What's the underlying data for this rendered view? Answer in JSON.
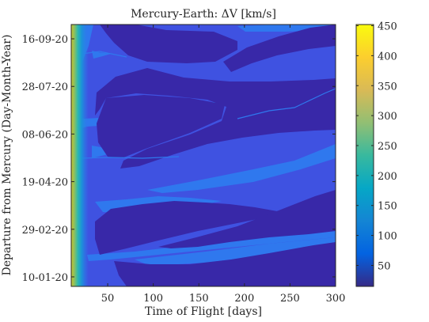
{
  "chart_data": {
    "type": "heatmap",
    "title": "Mercury-Earth: ΔV [km/s]",
    "xlabel": "Time of Flight [days]",
    "ylabel": "Departure from Mercury (Day-Month-Year)",
    "x": {
      "ticks": [
        50,
        100,
        150,
        200,
        250,
        300
      ],
      "range": [
        10,
        300
      ]
    },
    "y": {
      "ticks": [
        "16-09-20",
        "28-07-20",
        "08-06-20",
        "19-04-20",
        "29-02-20",
        "10-01-20"
      ],
      "range": [
        "31-12-19",
        "01-10-20"
      ]
    },
    "colorbar": {
      "ticks": [
        50,
        100,
        150,
        200,
        250,
        300,
        350,
        400,
        450
      ],
      "range": [
        15,
        452
      ],
      "colormap": "parula",
      "colors": [
        "#352a87",
        "#0363e1",
        "#1485d4",
        "#06a7c6",
        "#38b99e",
        "#92bf73",
        "#d9ba56",
        "#fcce2e",
        "#f9fb0e"
      ]
    },
    "contour_levels_km_s": [
      50,
      100,
      150,
      200,
      250,
      300,
      350,
      400,
      450
    ],
    "regions": [
      {
        "level": "<50",
        "description": "dark blue diagonal bands (optimal transfer windows)"
      },
      {
        "level": "50-100",
        "description": "medium blue background"
      },
      {
        "level": "100-150",
        "description": "lighter blue bands and narrow slivers"
      },
      {
        "level": ">150",
        "description": "short time of flight strip (under ~30 days)"
      }
    ],
    "grid": false,
    "colorbar_location": "right"
  }
}
